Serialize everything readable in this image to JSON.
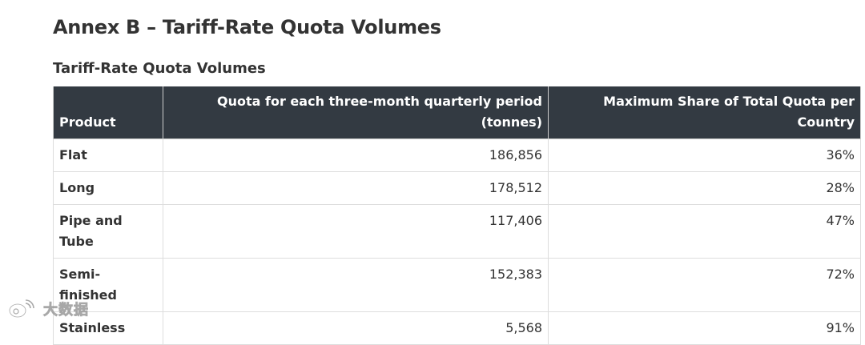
{
  "page": {
    "title": "Annex B – Tariff-Rate Quota Volumes",
    "table_caption": "Tariff-Rate Quota Volumes"
  },
  "table": {
    "headers": [
      "Product",
      "Quota for each three-month quarterly period (tonnes)",
      "Maximum Share of Total Quota per Country"
    ],
    "rows": [
      [
        "Flat",
        "186,856",
        "36%"
      ],
      [
        "Long",
        "178,512",
        "28%"
      ],
      [
        "Pipe and Tube",
        "117,406",
        "47%"
      ],
      [
        "Semi-finished",
        "152,383",
        "72%"
      ],
      [
        "Stainless",
        "5,568",
        "91%"
      ]
    ]
  },
  "colors": {
    "header_bg": "#333a42",
    "header_text": "#ffffff",
    "body_text": "#333333",
    "border": "#dddddd"
  },
  "watermark": {
    "icon": "weibo-logo-icon",
    "text": "大数据"
  }
}
